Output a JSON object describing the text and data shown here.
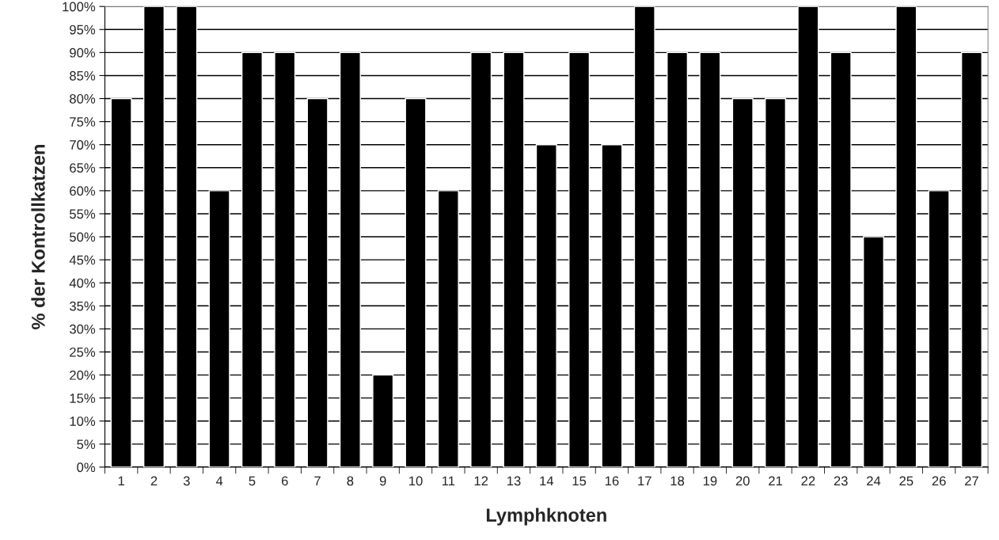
{
  "chart_data": {
    "type": "bar",
    "xlabel": "Lymphknoten",
    "ylabel": "% der Kontrollkatzen",
    "categories": [
      "1",
      "2",
      "3",
      "4",
      "5",
      "6",
      "7",
      "8",
      "9",
      "10",
      "11",
      "12",
      "13",
      "14",
      "15",
      "16",
      "17",
      "18",
      "19",
      "20",
      "21",
      "22",
      "23",
      "24",
      "25",
      "26",
      "27"
    ],
    "values": [
      80,
      100,
      100,
      60,
      90,
      90,
      80,
      90,
      20,
      80,
      60,
      90,
      90,
      70,
      90,
      70,
      100,
      90,
      90,
      80,
      80,
      100,
      90,
      50,
      100,
      60,
      90
    ],
    "color": "#000000",
    "ylim": [
      0,
      100
    ],
    "yticks": [
      {
        "value": 0,
        "label": "0%"
      },
      {
        "value": 5,
        "label": "5%"
      },
      {
        "value": 10,
        "label": "10%"
      },
      {
        "value": 15,
        "label": "15%"
      },
      {
        "value": 20,
        "label": "20%"
      },
      {
        "value": 25,
        "label": "25%"
      },
      {
        "value": 30,
        "label": "30%"
      },
      {
        "value": 35,
        "label": "35%"
      },
      {
        "value": 40,
        "label": "40%"
      },
      {
        "value": 45,
        "label": "45%"
      },
      {
        "value": 50,
        "label": "50%"
      },
      {
        "value": 55,
        "label": "55%"
      },
      {
        "value": 60,
        "label": "60%"
      },
      {
        "value": 65,
        "label": "65%"
      },
      {
        "value": 70,
        "label": "70%"
      },
      {
        "value": 75,
        "label": "75%"
      },
      {
        "value": 80,
        "label": "80%"
      },
      {
        "value": 85,
        "label": "85%"
      },
      {
        "value": 90,
        "label": "90%"
      },
      {
        "value": 95,
        "label": "95%"
      },
      {
        "value": 100,
        "label": "100%"
      }
    ],
    "grid": "y"
  }
}
